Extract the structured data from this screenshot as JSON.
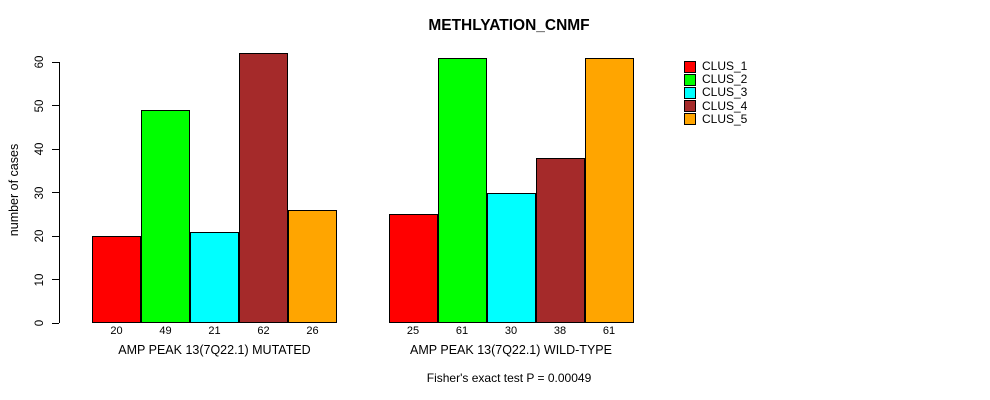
{
  "title": "METHLYATION_CNMF",
  "ylabel": "number of cases",
  "footer": "Fisher's exact test P = 0.00049",
  "legend": {
    "position": "right",
    "items": [
      {
        "label": "CLUS_1",
        "color": "#FF0000"
      },
      {
        "label": "CLUS_2",
        "color": "#00FF00"
      },
      {
        "label": "CLUS_3",
        "color": "#00FFFF"
      },
      {
        "label": "CLUS_4",
        "color": "#A52A2A"
      },
      {
        "label": "CLUS_5",
        "color": "#FFA500"
      }
    ]
  },
  "chart_data": {
    "type": "bar",
    "title": "METHLYATION_CNMF",
    "xlabel": "",
    "ylabel": "number of cases",
    "ylim": [
      0,
      60
    ],
    "yticks": [
      0,
      10,
      20,
      30,
      40,
      50,
      60
    ],
    "grid": false,
    "legend_position": "right",
    "series_names": [
      "CLUS_1",
      "CLUS_2",
      "CLUS_3",
      "CLUS_4",
      "CLUS_5"
    ],
    "series_colors": [
      "#FF0000",
      "#00FF00",
      "#00FFFF",
      "#A52A2A",
      "#FFA500"
    ],
    "groups": [
      {
        "label": "AMP PEAK 13(7Q22.1) MUTATED",
        "values": [
          20,
          49,
          21,
          62,
          26
        ]
      },
      {
        "label": "AMP PEAK 13(7Q22.1) WILD-TYPE",
        "values": [
          25,
          61,
          30,
          38,
          61
        ]
      }
    ],
    "annotation": "Fisher's exact test P = 0.00049"
  }
}
